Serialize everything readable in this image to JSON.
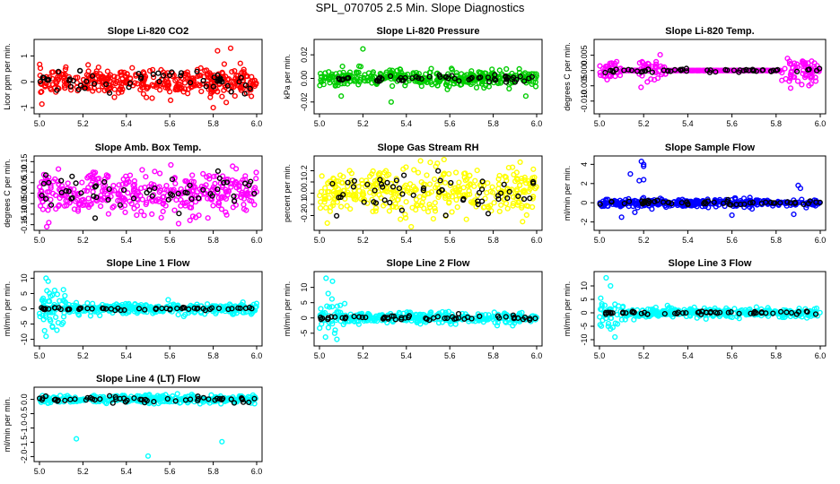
{
  "title": "SPL_070705  2.5 Min. Slope Diagnostics",
  "chart_data": [
    {
      "type": "scatter",
      "title": "Slope Li-820 CO2",
      "ylabel": "Licor ppm per min.",
      "color": "#ff0000",
      "xlim": [
        5.0,
        6.0
      ],
      "ylim": [
        -1.1,
        1.5
      ],
      "xticks": [
        "5.0",
        "5.2",
        "5.4",
        "5.6",
        "5.8",
        "6.0"
      ],
      "yticks": [
        -1,
        0,
        1
      ],
      "ytick_labels": [
        "-1",
        "0",
        "1"
      ],
      "spread": 0.45,
      "outliers": [
        [
          5.8,
          -1.0
        ],
        [
          5.82,
          1.2
        ],
        [
          5.86,
          -0.8
        ],
        [
          5.88,
          1.3
        ]
      ],
      "black_spread": 0.3
    },
    {
      "type": "scatter",
      "title": "Slope Li-820 Pressure",
      "ylabel": "kPa per min.",
      "color": "#00cc00",
      "xlim": [
        5.0,
        6.0
      ],
      "ylim": [
        -0.027,
        0.03
      ],
      "xticks": [
        "5.0",
        "5.2",
        "5.4",
        "5.6",
        "5.8",
        "6.0"
      ],
      "yticks": [
        -0.02,
        0.0,
        0.02
      ],
      "ytick_labels": [
        "-0.02",
        "0.00",
        "0.02"
      ],
      "spread": 0.006,
      "outliers": [
        [
          5.2,
          0.025
        ],
        [
          5.19,
          0.01
        ],
        [
          5.1,
          -0.015
        ],
        [
          5.33,
          -0.02
        ],
        [
          5.95,
          -0.015
        ],
        [
          5.92,
          0.008
        ]
      ],
      "black_spread": 0.003
    },
    {
      "type": "scatter",
      "title": "Slope Li-820 Temp.",
      "ylabel": "degrees C per min.",
      "color": "#ff00ff",
      "xlim": [
        5.0,
        6.0
      ],
      "ylim": [
        -0.013,
        0.009
      ],
      "xticks": [
        "5.0",
        "5.2",
        "5.4",
        "5.6",
        "5.8",
        "6.0"
      ],
      "yticks": [
        -0.01,
        -0.005,
        0.0,
        0.005
      ],
      "ytick_labels": [
        "-0.010",
        "-0.005",
        "0.000",
        "0.005"
      ],
      "spread": 0.0,
      "bursts": [
        [
          5.0,
          5.1,
          0.003
        ],
        [
          5.18,
          5.3,
          0.005
        ],
        [
          5.82,
          6.0,
          0.004
        ]
      ],
      "outliers": [],
      "black_spread": 0.0005
    },
    {
      "type": "scatter",
      "title": "Slope Amb. Box Temp.",
      "ylabel": "degrees C per min.",
      "color": "#ff00ff",
      "xlim": [
        5.0,
        6.0
      ],
      "ylim": [
        -0.16,
        0.16
      ],
      "xticks": [
        "5.0",
        "5.2",
        "5.4",
        "5.6",
        "5.8",
        "6.0"
      ],
      "yticks": [
        -0.15,
        -0.1,
        -0.05,
        0.0,
        0.05,
        0.1,
        0.15
      ],
      "ytick_labels": [
        "-0.15",
        "-0.10",
        "-0.05",
        "0.00",
        "0.05",
        "0.10",
        "0.15"
      ],
      "spread": 0.09,
      "outliers": [],
      "black_spread": 0.08
    },
    {
      "type": "scatter",
      "title": "Slope Gas Stream RH",
      "ylabel": "percent per min.",
      "color": "#ffff00",
      "xlim": [
        5.0,
        6.0
      ],
      "ylim": [
        -0.3,
        0.3
      ],
      "xticks": [
        "5.0",
        "5.2",
        "5.4",
        "5.6",
        "5.8",
        "6.0"
      ],
      "yticks": [
        -0.2,
        -0.1,
        0.0,
        0.1,
        0.2
      ],
      "ytick_labels": [
        "-0.2",
        "-0.1",
        "0.0",
        "0.1",
        "0.2"
      ],
      "spread": 0.2,
      "outliers": [],
      "black_spread": 0.18
    },
    {
      "type": "scatter",
      "title": "Slope Sample Flow",
      "ylabel": "ml/min per min.",
      "color": "#0000ff",
      "xlim": [
        5.0,
        6.0
      ],
      "ylim": [
        -2.5,
        4.5
      ],
      "xticks": [
        "5.0",
        "5.2",
        "5.4",
        "5.6",
        "5.8",
        "6.0"
      ],
      "yticks": [
        -2,
        0,
        2,
        4
      ],
      "ytick_labels": [
        "-2",
        "0",
        "2",
        "4"
      ],
      "spread": 0.35,
      "outliers": [
        [
          5.19,
          4.3
        ],
        [
          5.2,
          4.0
        ],
        [
          5.2,
          3.8
        ],
        [
          5.18,
          2.3
        ],
        [
          5.2,
          2.4
        ],
        [
          5.14,
          3.0
        ],
        [
          5.1,
          -1.5
        ],
        [
          5.16,
          -1.0
        ],
        [
          5.6,
          -1.3
        ],
        [
          5.9,
          1.8
        ],
        [
          5.91,
          1.5
        ],
        [
          5.88,
          -1.2
        ]
      ],
      "black_spread": 0.2
    },
    {
      "type": "scatter",
      "title": "Slope Line 1 Flow",
      "ylabel": "ml/min per min.",
      "color": "#00ffff",
      "xlim": [
        5.0,
        6.0
      ],
      "ylim": [
        -11,
        11
      ],
      "xticks": [
        "5.0",
        "5.2",
        "5.4",
        "5.6",
        "5.8",
        "6.0"
      ],
      "yticks": [
        -10,
        -5,
        0,
        5,
        10
      ],
      "ytick_labels": [
        "-10",
        "-5",
        "0",
        "5",
        "10"
      ],
      "spread": 1.5,
      "bursts": [
        [
          5.0,
          5.12,
          6
        ]
      ],
      "outliers": [
        [
          5.03,
          10
        ],
        [
          5.04,
          9
        ],
        [
          5.07,
          6
        ],
        [
          5.06,
          -6
        ],
        [
          5.03,
          -9
        ],
        [
          5.08,
          -7
        ]
      ],
      "black_spread": 0.4
    },
    {
      "type": "scatter",
      "title": "Slope Line 2 Flow",
      "ylabel": "ml/min per min.",
      "color": "#00ffff",
      "xlim": [
        5.0,
        6.0
      ],
      "ylim": [
        -8,
        14
      ],
      "xticks": [
        "5.0",
        "5.2",
        "5.4",
        "5.6",
        "5.8",
        "6.0"
      ],
      "yticks": [
        -5,
        0,
        5,
        10
      ],
      "ytick_labels": [
        "-5",
        "0",
        "5",
        "10"
      ],
      "spread": 1.5,
      "bursts": [
        [
          5.0,
          5.12,
          5
        ]
      ],
      "outliers": [
        [
          5.03,
          13
        ],
        [
          5.06,
          12
        ],
        [
          5.08,
          -7
        ],
        [
          5.07,
          -5
        ],
        [
          5.04,
          8
        ]
      ],
      "black_spread": 0.6
    },
    {
      "type": "scatter",
      "title": "Slope Line 3 Flow",
      "ylabel": "ml/min per min.",
      "color": "#00ffff",
      "xlim": [
        5.0,
        6.0
      ],
      "ylim": [
        -11,
        14
      ],
      "xticks": [
        "5.0",
        "5.2",
        "5.4",
        "5.6",
        "5.8",
        "6.0"
      ],
      "yticks": [
        -10,
        -5,
        0,
        5,
        10
      ],
      "ytick_labels": [
        "-10",
        "-5",
        "0",
        "5",
        "10"
      ],
      "spread": 1.5,
      "bursts": [
        [
          5.0,
          5.12,
          6
        ]
      ],
      "outliers": [
        [
          5.03,
          13
        ],
        [
          5.05,
          10
        ],
        [
          5.05,
          -6
        ],
        [
          5.07,
          -9
        ],
        [
          5.04,
          -5
        ]
      ],
      "black_spread": 0.6
    },
    {
      "type": "scatter",
      "title": "Slope Line 4 (LT) Flow",
      "ylabel": "ml/min per min.",
      "color": "#00ffff",
      "xlim": [
        5.0,
        6.0
      ],
      "ylim": [
        -2.05,
        0.3
      ],
      "xticks": [
        "5.0",
        "5.2",
        "5.4",
        "5.6",
        "5.8",
        "6.0"
      ],
      "yticks": [
        -2.0,
        -1.5,
        -1.0,
        -0.5,
        0.0
      ],
      "ytick_labels": [
        "-2.0",
        "-1.5",
        "-1.0",
        "-0.5",
        "0.0"
      ],
      "spread": 0.12,
      "outliers": [
        [
          5.17,
          -1.38
        ],
        [
          5.5,
          -1.98
        ],
        [
          5.84,
          -1.48
        ]
      ],
      "black_spread": 0.08
    }
  ]
}
